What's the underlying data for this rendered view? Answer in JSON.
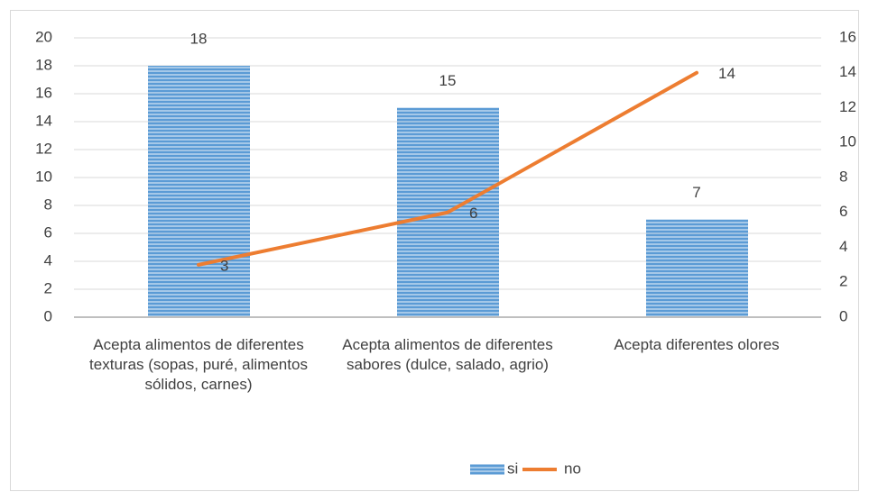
{
  "chart_data": {
    "type": "bar",
    "categories": [
      "Acepta alimentos de diferentes texturas (sopas, puré, alimentos sólidos, carnes)",
      "Acepta alimentos de diferentes sabores (dulce, salado, agrio)",
      "Acepta diferentes olores"
    ],
    "series": [
      {
        "name": "si",
        "type": "bar",
        "color": "#5b9bd5",
        "values": [
          18,
          15,
          7
        ]
      },
      {
        "name": "no",
        "type": "line",
        "axis": "y2",
        "color": "#ed7d31",
        "values": [
          3,
          6,
          14
        ]
      }
    ],
    "ylim": [
      0,
      20
    ],
    "yticks": [
      0,
      2,
      4,
      6,
      8,
      10,
      12,
      14,
      16,
      18,
      20
    ],
    "y2lim": [
      0,
      16
    ],
    "y2ticks": [
      0,
      2,
      4,
      6,
      8,
      10,
      12,
      14,
      16
    ],
    "grid": true,
    "legend": "bottom",
    "data_labels": true
  }
}
